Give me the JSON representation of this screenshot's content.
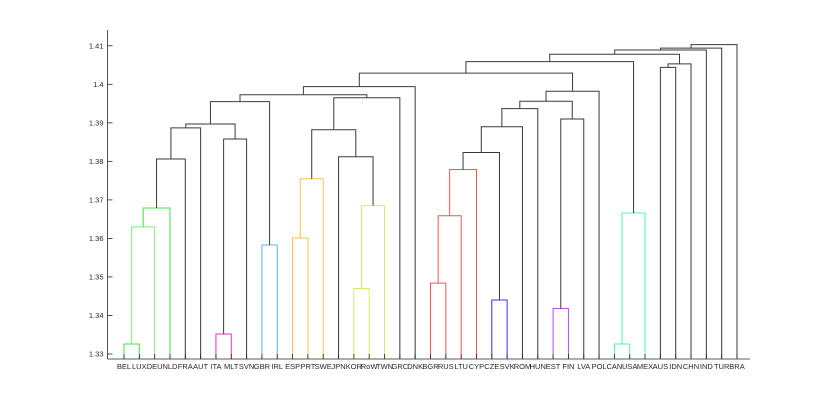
{
  "chart_data": {
    "type": "dendrogram",
    "title": "",
    "xlabel": "",
    "ylabel": "",
    "ylim": [
      1.3287,
      1.4141
    ],
    "yticks": [
      1.33,
      1.34,
      1.35,
      1.36,
      1.37,
      1.38,
      1.39,
      1.4,
      1.41
    ],
    "ytick_labels": [
      "1.33",
      "1.34",
      "1.35",
      "1.36",
      "1.37",
      "1.38",
      "1.39",
      "1.4",
      "1.41"
    ],
    "leaves": [
      "BEL",
      "LUX",
      "DEU",
      "NLD",
      "FRA",
      "AUT",
      "ITA",
      "MLT",
      "SVN",
      "GBR",
      "IRL",
      "ESP",
      "PRT",
      "SWE",
      "JPN",
      "KOR",
      "RoW",
      "TWN",
      "GRC",
      "DNK",
      "BGR",
      "RUS",
      "LTU",
      "CYP",
      "CZE",
      "SVK",
      "ROM",
      "HUN",
      "EST",
      "FIN",
      "LVA",
      "POL",
      "CAN",
      "USA",
      "MEX",
      "AUS",
      "IDN",
      "CHN",
      "IND",
      "TUR",
      "BRA"
    ],
    "default_link_color": "#3a3a3a",
    "merges": [
      [
        0,
        1,
        1.3326,
        "#3fe03f"
      ],
      [
        41,
        2,
        1.363,
        "#7df07d"
      ],
      [
        42,
        3,
        1.3679,
        "#3fe03f"
      ],
      [
        43,
        4,
        1.3806,
        null
      ],
      [
        44,
        5,
        1.3887,
        null
      ],
      [
        6,
        7,
        1.3352,
        "#e633b3"
      ],
      [
        46,
        8,
        1.3858,
        null
      ],
      [
        45,
        47,
        1.3897,
        null
      ],
      [
        9,
        10,
        1.3583,
        "#4db8f0"
      ],
      [
        48,
        49,
        1.3955,
        null
      ],
      [
        11,
        12,
        1.3601,
        "#ffc04d"
      ],
      [
        51,
        13,
        1.3755,
        "#ffc04d"
      ],
      [
        15,
        16,
        1.347,
        "#ccf266"
      ],
      [
        53,
        17,
        1.3685,
        "#ccf266"
      ],
      [
        14,
        54,
        1.3812,
        null
      ],
      [
        52,
        55,
        1.3882,
        null
      ],
      [
        56,
        18,
        1.3965,
        null
      ],
      [
        50,
        57,
        1.3973,
        null
      ],
      [
        58,
        19,
        1.3994,
        null
      ],
      [
        20,
        21,
        1.3484,
        "#f25555"
      ],
      [
        60,
        22,
        1.3659,
        "#f25555"
      ],
      [
        61,
        23,
        1.3779,
        "#f25555"
      ],
      [
        24,
        25,
        1.344,
        "#3333f0"
      ],
      [
        62,
        63,
        1.3823,
        null
      ],
      [
        64,
        26,
        1.389,
        null
      ],
      [
        65,
        27,
        1.3937,
        null
      ],
      [
        28,
        29,
        1.3418,
        "#b34df0"
      ],
      [
        67,
        30,
        1.391,
        null
      ],
      [
        66,
        68,
        1.3956,
        null
      ],
      [
        69,
        31,
        1.3982,
        null
      ],
      [
        59,
        70,
        1.4029,
        null
      ],
      [
        32,
        33,
        1.3326,
        "#4df0c0"
      ],
      [
        72,
        34,
        1.3666,
        "#4df0c0"
      ],
      [
        71,
        73,
        1.4059,
        null
      ],
      [
        35,
        36,
        1.4044,
        null
      ],
      [
        75,
        37,
        1.4053,
        null
      ],
      [
        74,
        76,
        1.4078,
        null
      ],
      [
        77,
        38,
        1.4089,
        null
      ],
      [
        78,
        39,
        1.4094,
        null
      ],
      [
        79,
        40,
        1.4103,
        null
      ]
    ]
  }
}
